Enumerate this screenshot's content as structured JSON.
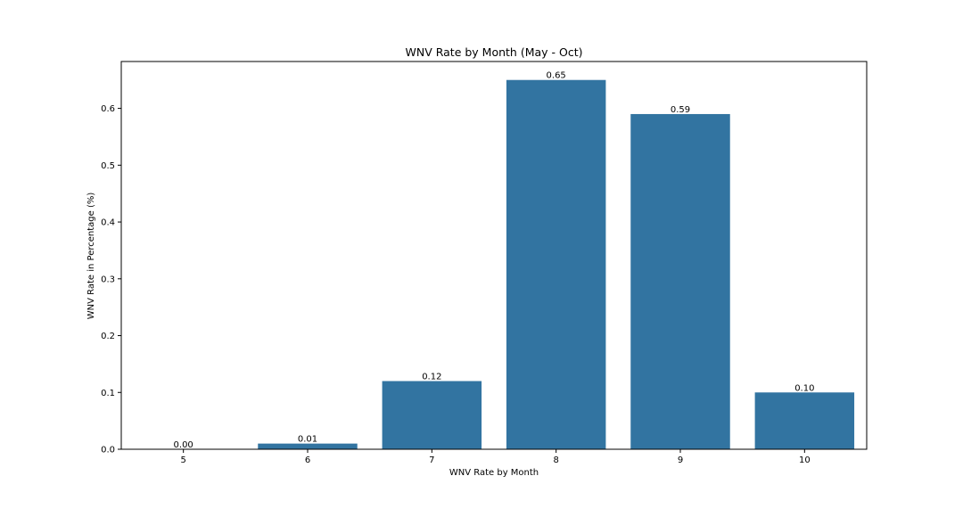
{
  "chart_data": {
    "type": "bar",
    "title": "WNV Rate by Month (May - Oct)",
    "xlabel": "WNV Rate by Month",
    "ylabel": "WNV Rate in Percentage (%)",
    "categories": [
      "5",
      "6",
      "7",
      "8",
      "9",
      "10"
    ],
    "values": [
      0.0,
      0.01,
      0.12,
      0.65,
      0.59,
      0.1
    ],
    "value_labels": [
      "0.00",
      "0.01",
      "0.12",
      "0.65",
      "0.59",
      "0.10"
    ],
    "yticks": [
      0.0,
      0.1,
      0.2,
      0.3,
      0.4,
      0.5,
      0.6
    ],
    "ytick_labels": [
      "0.0",
      "0.1",
      "0.2",
      "0.3",
      "0.4",
      "0.5",
      "0.6"
    ],
    "ylim": [
      0,
      0.6825
    ],
    "grid": false,
    "legend": "none",
    "bar_color": "#3274a1"
  }
}
